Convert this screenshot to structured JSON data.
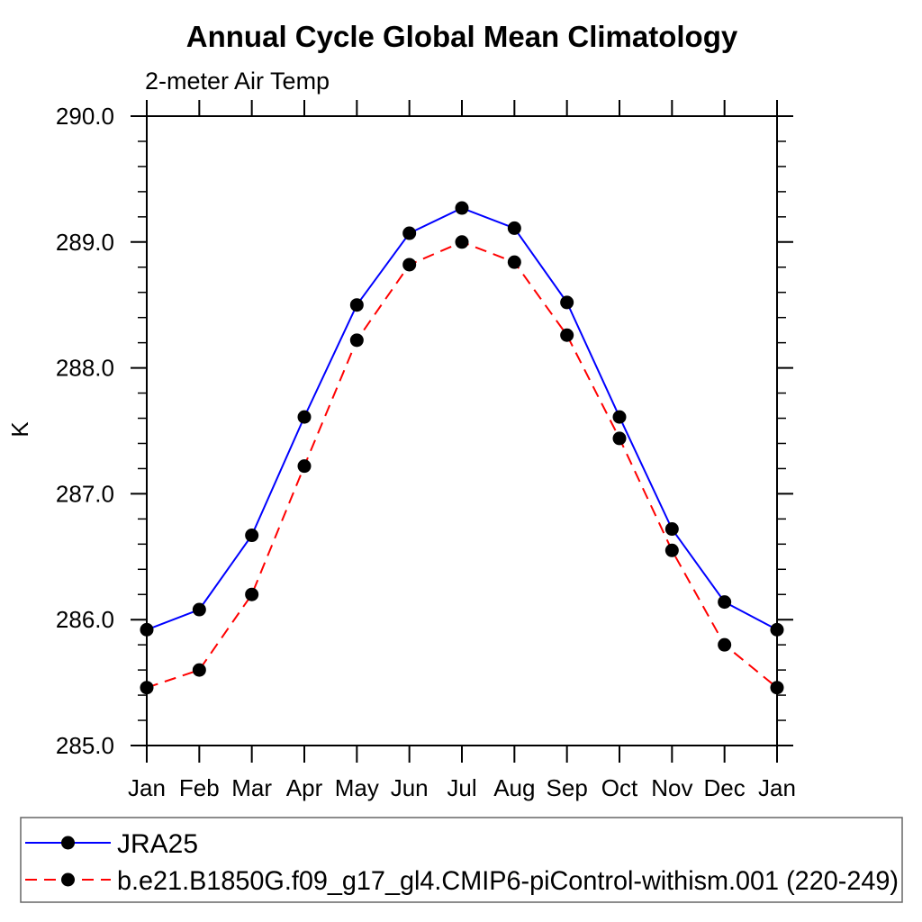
{
  "page": {
    "background": "#ffffff"
  },
  "chart_data": {
    "type": "line",
    "title": "Annual Cycle Global Mean Climatology",
    "subtitle": "2-meter Air Temp",
    "ylabel": "K",
    "xlabel": "",
    "categories": [
      "Jan",
      "Feb",
      "Mar",
      "Apr",
      "May",
      "Jun",
      "Jul",
      "Aug",
      "Sep",
      "Oct",
      "Nov",
      "Dec",
      "Jan"
    ],
    "ylim": [
      285.0,
      290.0
    ],
    "ytick_labels": [
      "285.0",
      "286.0",
      "287.0",
      "288.0",
      "289.0",
      "290.0"
    ],
    "ytick_major_step": 1.0,
    "ytick_minor_step": 0.2,
    "grid": false,
    "legend_position": "bottom",
    "axis_color": "#000000",
    "marker_color": "#000000",
    "series": [
      {
        "name": "JRA25",
        "color": "#0000ff",
        "line_style": "solid",
        "marker": "filled-circle",
        "values": [
          285.92,
          286.08,
          286.67,
          287.61,
          288.5,
          289.07,
          289.27,
          289.11,
          288.52,
          287.61,
          286.72,
          286.14,
          285.92
        ]
      },
      {
        "name": "b.e21.B1850G.f09_g17_gl4.CMIP6-piControl-withism.001 (220-249)",
        "color": "#ff0000",
        "line_style": "dashed",
        "marker": "filled-circle",
        "values": [
          285.46,
          285.6,
          286.2,
          287.22,
          288.22,
          288.82,
          289.0,
          288.84,
          288.26,
          287.44,
          286.55,
          285.8,
          285.46
        ]
      }
    ]
  }
}
